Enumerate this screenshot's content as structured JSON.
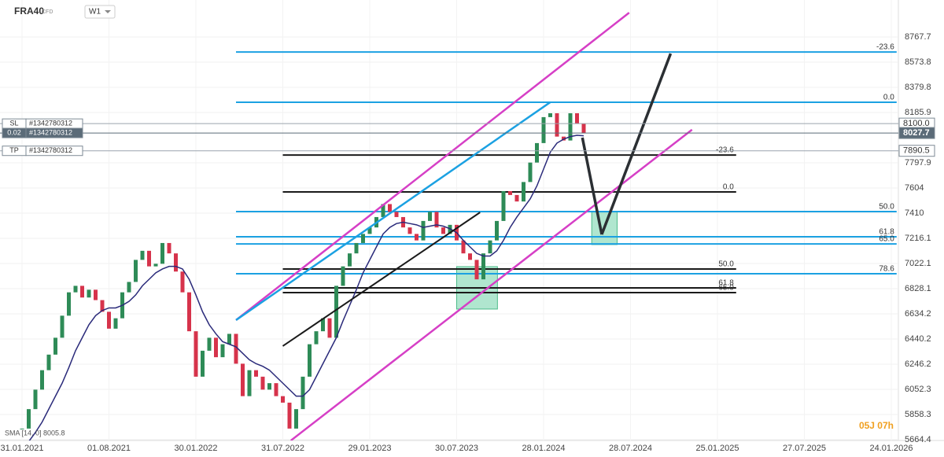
{
  "header": {
    "symbol": "FRA40",
    "kind": "CFD",
    "timeframe": "W1",
    "countdown": "05J 07h"
  },
  "chart_data": {
    "type": "candlestick",
    "up_color": "#2e8b57",
    "down_color": "#d6334b",
    "sma_color": "#2a2a7a",
    "close": [
      5750,
      5900,
      6050,
      6200,
      6320,
      6450,
      6620,
      6800,
      6850,
      6760,
      6820,
      6740,
      6650,
      6520,
      6600,
      6800,
      6880,
      7050,
      7120,
      7000,
      7020,
      7180,
      7100,
      6960,
      6800,
      6500,
      6150,
      6350,
      6450,
      6300,
      6400,
      6480,
      6250,
      6000,
      6200,
      6150,
      6050,
      6100,
      6000,
      5950,
      5750,
      5900,
      6150,
      6400,
      6500,
      6600,
      6450,
      6850,
      7000,
      7100,
      7180,
      7250,
      7300,
      7380,
      7480,
      7420,
      7380,
      7300,
      7250,
      7200,
      7350,
      7420,
      7300,
      7250,
      7320,
      7200,
      7100,
      7050,
      6900,
      7100,
      7200,
      7350,
      7580,
      7550,
      7500,
      7650,
      7800,
      7950,
      8150,
      8180,
      8000,
      7970,
      8180,
      8100,
      8028
    ],
    "sma": [
      5600,
      5650,
      5720,
      5800,
      5900,
      6000,
      6100,
      6220,
      6350,
      6450,
      6550,
      6620,
      6660,
      6680,
      6680,
      6700,
      6730,
      6780,
      6850,
      6900,
      6950,
      6980,
      7000,
      7000,
      6980,
      6900,
      6780,
      6650,
      6550,
      6480,
      6420,
      6400,
      6380,
      6330,
      6280,
      6250,
      6230,
      6200,
      6150,
      6100,
      6050,
      6000,
      6000,
      6050,
      6150,
      6250,
      6350,
      6450,
      6580,
      6700,
      6820,
      6950,
      7050,
      7150,
      7250,
      7300,
      7330,
      7340,
      7330,
      7320,
      7300,
      7310,
      7320,
      7310,
      7290,
      7260,
      7200,
      7150,
      7100,
      7080,
      7080,
      7120,
      7200,
      7300,
      7380,
      7450,
      7520,
      7620,
      7750,
      7880,
      7950,
      7980,
      8000,
      8010,
      8006
    ],
    "sma_label": "SMA [14, 0] 8005.8",
    "ylim": [
      5664.4,
      8767.7
    ],
    "yticks": [
      8767.7,
      8573.8,
      8379.8,
      8185.9,
      7797.9,
      7604.0,
      7410.0,
      7216.1,
      7022.1,
      6828.1,
      6634.2,
      6440.2,
      6246.2,
      6052.3,
      5858.3,
      5664.4
    ],
    "xlabels": [
      "31.01.2021",
      "01.08.2021",
      "30.01.2022",
      "31.07.2022",
      "29.01.2023",
      "30.07.2023",
      "28.01.2024",
      "28.07.2024",
      "25.01.2025",
      "27.07.2025",
      "24.01.2026"
    ],
    "fib_blue": {
      "color": "#1ba1e2",
      "from": 32,
      "to": 130.8,
      "levels": [
        8652,
        8265,
        7422,
        7228,
        7173,
        6943
      ],
      "labels": [
        "-23.6",
        "0.0",
        "50.0",
        "61.8",
        "65.0",
        "78.6"
      ]
    },
    "fib_black": {
      "color": "#1a1a1a",
      "from": 39,
      "to": 106.8,
      "levels": [
        7858,
        7574,
        6980,
        6834,
        6798
      ],
      "labels": [
        "-23.6",
        "0.0",
        "50.0",
        "61.8",
        "65.0"
      ]
    },
    "lines": [
      {
        "color": "#d63fc6",
        "width": 2.5,
        "from": [
          32,
          6586
        ],
        "to": [
          90.8,
          8955
        ]
      },
      {
        "color": "#d63fc6",
        "width": 2.5,
        "from": [
          40.2,
          5658
        ],
        "to": [
          100.2,
          8053
        ]
      },
      {
        "color": "#1ba1e2",
        "width": 2.5,
        "from": [
          32,
          6586
        ],
        "to": [
          79,
          8265
        ]
      },
      {
        "color": "#1a1a1a",
        "width": 2,
        "from": [
          39,
          6386
        ],
        "to": [
          68.5,
          7416
        ]
      },
      {
        "color": "#2b2f33",
        "width": 3.5,
        "from": [
          83.8,
          7992
        ],
        "to": [
          86.7,
          7246
        ]
      },
      {
        "color": "#2b2f33",
        "width": 3.5,
        "from": [
          86.7,
          7246
        ],
        "to": [
          97,
          8640
        ]
      }
    ],
    "zones": [
      {
        "color": "#6fd1a8",
        "from": 65,
        "to": 71.1,
        "top": 6998,
        "bottom": 6671
      },
      {
        "color": "#6fd1a8",
        "from": 85.2,
        "to": 89,
        "top": 7422,
        "bottom": 7168
      }
    ],
    "orders": [
      {
        "tag": "SL",
        "id": "#1342780312",
        "price": {
          "value": 8100,
          "label": "8100.0"
        }
      },
      {
        "tag": "0.02",
        "id": "#1342780312",
        "price": 8027.7
      },
      {
        "tag": "TP",
        "id": "#1342780312",
        "price": 7890.5
      }
    ]
  }
}
